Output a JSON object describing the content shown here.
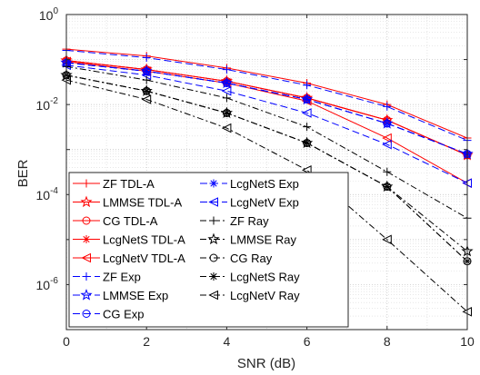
{
  "chart_data": {
    "type": "line",
    "title": "",
    "xlabel": "SNR (dB)",
    "ylabel": "BER",
    "x": [
      0,
      2,
      4,
      6,
      8,
      10
    ],
    "xlim": [
      0,
      10
    ],
    "ylim": [
      1e-07,
      1
    ],
    "yscale": "log",
    "grid": "major and minor",
    "legend_position": "bottom-left",
    "x_ticks": [
      "0",
      "2",
      "4",
      "6",
      "8",
      "10"
    ],
    "y_ticks": [
      {
        "base": "10",
        "exp": "0"
      },
      {
        "base": "10",
        "exp": "-2"
      },
      {
        "base": "10",
        "exp": "-4"
      },
      {
        "base": "10",
        "exp": "-6"
      }
    ],
    "series": [
      {
        "name": "ZF TDL-A",
        "color": "#ff0000",
        "dash": "solid",
        "marker": "plus",
        "values": [
          0.17,
          0.12,
          0.065,
          0.03,
          0.01,
          0.0018
        ]
      },
      {
        "name": "LMMSE TDL-A",
        "color": "#ff0000",
        "dash": "solid",
        "marker": "star",
        "values": [
          0.095,
          0.06,
          0.033,
          0.014,
          0.0045,
          0.00075
        ]
      },
      {
        "name": "CG TDL-A",
        "color": "#ff0000",
        "dash": "solid",
        "marker": "circle",
        "values": [
          0.095,
          0.06,
          0.033,
          0.014,
          0.0045,
          0.00075
        ]
      },
      {
        "name": "LcgNetS TDL-A",
        "color": "#ff0000",
        "dash": "solid",
        "marker": "asterisk",
        "values": [
          0.095,
          0.06,
          0.033,
          0.014,
          0.0045,
          0.00075
        ]
      },
      {
        "name": "LcgNetV TDL-A",
        "color": "#ff0000",
        "dash": "solid",
        "marker": "tri-left",
        "values": [
          0.09,
          0.055,
          0.03,
          0.012,
          0.0018,
          0.00018
        ]
      },
      {
        "name": "ZF Exp",
        "color": "#0000ff",
        "dash": "dashed",
        "marker": "plus",
        "values": [
          0.16,
          0.11,
          0.06,
          0.027,
          0.009,
          0.0016
        ]
      },
      {
        "name": "LMMSE Exp",
        "color": "#0000ff",
        "dash": "dashed",
        "marker": "star",
        "values": [
          0.085,
          0.055,
          0.03,
          0.013,
          0.0038,
          0.0008
        ]
      },
      {
        "name": "CG Exp",
        "color": "#0000ff",
        "dash": "dashed",
        "marker": "circle",
        "values": [
          0.085,
          0.055,
          0.03,
          0.013,
          0.0038,
          0.0008
        ]
      },
      {
        "name": "LcgNetS Exp",
        "color": "#0000ff",
        "dash": "dashed",
        "marker": "asterisk",
        "values": [
          0.085,
          0.055,
          0.03,
          0.013,
          0.0038,
          0.0008
        ]
      },
      {
        "name": "LcgNetV Exp",
        "color": "#0000ff",
        "dash": "dashed",
        "marker": "tri-left",
        "values": [
          0.075,
          0.045,
          0.02,
          0.0065,
          0.0013,
          0.00018
        ]
      },
      {
        "name": "ZF Ray",
        "color": "#000000",
        "dash": "dashdot",
        "marker": "plus",
        "values": [
          0.07,
          0.035,
          0.014,
          0.0032,
          0.00032,
          3e-05
        ]
      },
      {
        "name": "LMMSE Ray",
        "color": "#000000",
        "dash": "dashdot",
        "marker": "star",
        "values": [
          0.045,
          0.02,
          0.0065,
          0.0014,
          0.00015,
          5.5e-06
        ]
      },
      {
        "name": "CG Ray",
        "color": "#000000",
        "dash": "dashdot",
        "marker": "circle",
        "values": [
          0.045,
          0.02,
          0.0065,
          0.0014,
          0.00015,
          3.3e-06
        ]
      },
      {
        "name": "LcgNetS Ray",
        "color": "#000000",
        "dash": "dashdot",
        "marker": "asterisk",
        "values": [
          0.045,
          0.02,
          0.0065,
          0.0014,
          0.00015,
          3.3e-06
        ]
      },
      {
        "name": "LcgNetV Ray",
        "color": "#000000",
        "dash": "dashdot",
        "marker": "tri-left",
        "values": [
          0.035,
          0.013,
          0.003,
          0.00035,
          1e-05,
          2.5e-07
        ]
      }
    ]
  }
}
